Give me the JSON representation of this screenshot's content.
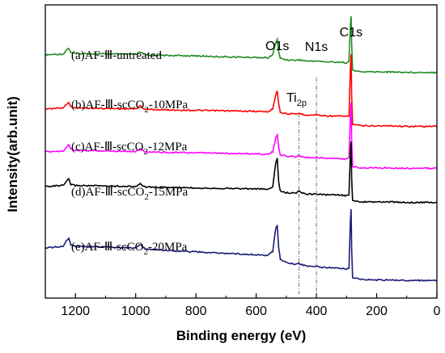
{
  "chart_data": {
    "type": "line",
    "xlabel": "Binding energy (eV)",
    "ylabel": "Intensity(arb.unit)",
    "xlim": [
      1300,
      0
    ],
    "x_reversed": true,
    "x_ticks": [
      1200,
      1000,
      800,
      600,
      400,
      200,
      0
    ],
    "y_ticks": [],
    "grid": false,
    "legend": "none",
    "peak_labels": [
      {
        "text": "O1s",
        "x": 530
      },
      {
        "text": "N1s",
        "x": 400
      },
      {
        "text": "C1s",
        "x": 285
      },
      {
        "text": "Ti",
        "sub": "2p",
        "x": 458
      }
    ],
    "reference_lines": [
      458,
      400
    ],
    "series": [
      {
        "name": "(a)AF-Ⅲ-untreated",
        "color": "#228b22",
        "x": [
          1300,
          1240,
          1230,
          1222,
          1215,
          1200,
          1100,
          1000,
          985,
          975,
          965,
          900,
          800,
          700,
          600,
          560,
          545,
          535,
          530,
          525,
          520,
          500,
          470,
          458,
          440,
          420,
          400,
          380,
          320,
          300,
          292,
          287,
          285,
          283,
          280,
          250,
          200,
          150,
          100,
          50,
          0
        ],
        "y": [
          0.5,
          0.52,
          0.6,
          0.64,
          0.55,
          0.53,
          0.52,
          0.51,
          0.56,
          0.52,
          0.5,
          0.49,
          0.48,
          0.46,
          0.45,
          0.44,
          0.5,
          0.76,
          0.82,
          0.55,
          0.43,
          0.4,
          0.39,
          0.4,
          0.38,
          0.37,
          0.38,
          0.36,
          0.35,
          0.34,
          0.36,
          1.12,
          1.3,
          0.75,
          0.18,
          0.15,
          0.15,
          0.15,
          0.14,
          0.14,
          0.14
        ]
      },
      {
        "name": "(b)AF-Ⅲ-scCO2-10MPa",
        "color": "#ff0000",
        "x": [
          1300,
          1240,
          1230,
          1222,
          1215,
          1200,
          1100,
          1000,
          985,
          975,
          965,
          900,
          800,
          700,
          600,
          560,
          545,
          535,
          530,
          525,
          520,
          500,
          470,
          458,
          440,
          420,
          400,
          380,
          320,
          300,
          292,
          287,
          285,
          283,
          280,
          250,
          200,
          150,
          100,
          50,
          0
        ],
        "y": [
          0.42,
          0.44,
          0.52,
          0.56,
          0.46,
          0.44,
          0.43,
          0.42,
          0.48,
          0.43,
          0.41,
          0.4,
          0.39,
          0.38,
          0.37,
          0.36,
          0.42,
          0.72,
          0.8,
          0.52,
          0.35,
          0.32,
          0.31,
          0.33,
          0.3,
          0.29,
          0.3,
          0.28,
          0.27,
          0.26,
          0.28,
          1.25,
          1.55,
          0.7,
          0.1,
          0.07,
          0.07,
          0.07,
          0.06,
          0.06,
          0.06
        ]
      },
      {
        "name": "(c)AF-Ⅲ-scCO2-12MPa",
        "color": "#ff00ff",
        "x": [
          1300,
          1240,
          1230,
          1222,
          1215,
          1200,
          1100,
          1000,
          985,
          975,
          965,
          900,
          800,
          700,
          600,
          560,
          545,
          535,
          530,
          525,
          520,
          500,
          470,
          458,
          440,
          420,
          400,
          380,
          320,
          300,
          292,
          287,
          285,
          283,
          280,
          250,
          200,
          150,
          100,
          50,
          0
        ],
        "y": [
          0.4,
          0.42,
          0.5,
          0.55,
          0.45,
          0.43,
          0.42,
          0.41,
          0.46,
          0.42,
          0.4,
          0.39,
          0.38,
          0.37,
          0.36,
          0.35,
          0.4,
          0.68,
          0.75,
          0.5,
          0.34,
          0.31,
          0.3,
          0.32,
          0.29,
          0.28,
          0.29,
          0.27,
          0.26,
          0.25,
          0.27,
          1.15,
          1.4,
          0.65,
          0.1,
          0.07,
          0.07,
          0.07,
          0.06,
          0.06,
          0.06
        ]
      },
      {
        "name": "(d)AF-Ⅲ-scCO2-15MPa",
        "color": "#000000",
        "x": [
          1300,
          1240,
          1230,
          1222,
          1215,
          1200,
          1100,
          1000,
          985,
          975,
          965,
          900,
          800,
          700,
          600,
          560,
          545,
          535,
          530,
          525,
          520,
          500,
          470,
          458,
          440,
          420,
          400,
          380,
          320,
          300,
          292,
          287,
          285,
          283,
          280,
          250,
          200,
          150,
          100,
          50,
          0
        ],
        "y": [
          0.62,
          0.64,
          0.72,
          0.77,
          0.66,
          0.64,
          0.63,
          0.62,
          0.67,
          0.63,
          0.61,
          0.6,
          0.59,
          0.58,
          0.57,
          0.56,
          0.62,
          1.1,
          1.2,
          0.7,
          0.52,
          0.49,
          0.48,
          0.52,
          0.47,
          0.46,
          0.47,
          0.45,
          0.44,
          0.43,
          0.45,
          1.3,
          1.55,
          0.8,
          0.32,
          0.3,
          0.3,
          0.3,
          0.29,
          0.29,
          0.29
        ]
      },
      {
        "name": "(e)AF-Ⅲ-scCO2-20MPa",
        "color": "#1a1a7a",
        "x": [
          1300,
          1240,
          1230,
          1222,
          1215,
          1200,
          1100,
          1000,
          985,
          975,
          965,
          900,
          800,
          700,
          600,
          560,
          545,
          535,
          530,
          525,
          520,
          500,
          470,
          458,
          440,
          420,
          400,
          380,
          320,
          300,
          292,
          287,
          285,
          283,
          280,
          250,
          200,
          150,
          100,
          50,
          0
        ],
        "y": [
          0.55,
          0.58,
          0.7,
          0.76,
          0.62,
          0.59,
          0.57,
          0.55,
          0.62,
          0.56,
          0.53,
          0.5,
          0.47,
          0.44,
          0.41,
          0.4,
          0.48,
          0.96,
          1.02,
          0.55,
          0.32,
          0.25,
          0.21,
          0.23,
          0.19,
          0.17,
          0.18,
          0.15,
          0.13,
          0.12,
          0.14,
          1.12,
          1.34,
          0.55,
          -0.06,
          -0.1,
          -0.11,
          -0.11,
          -0.12,
          -0.12,
          -0.12
        ]
      }
    ]
  }
}
